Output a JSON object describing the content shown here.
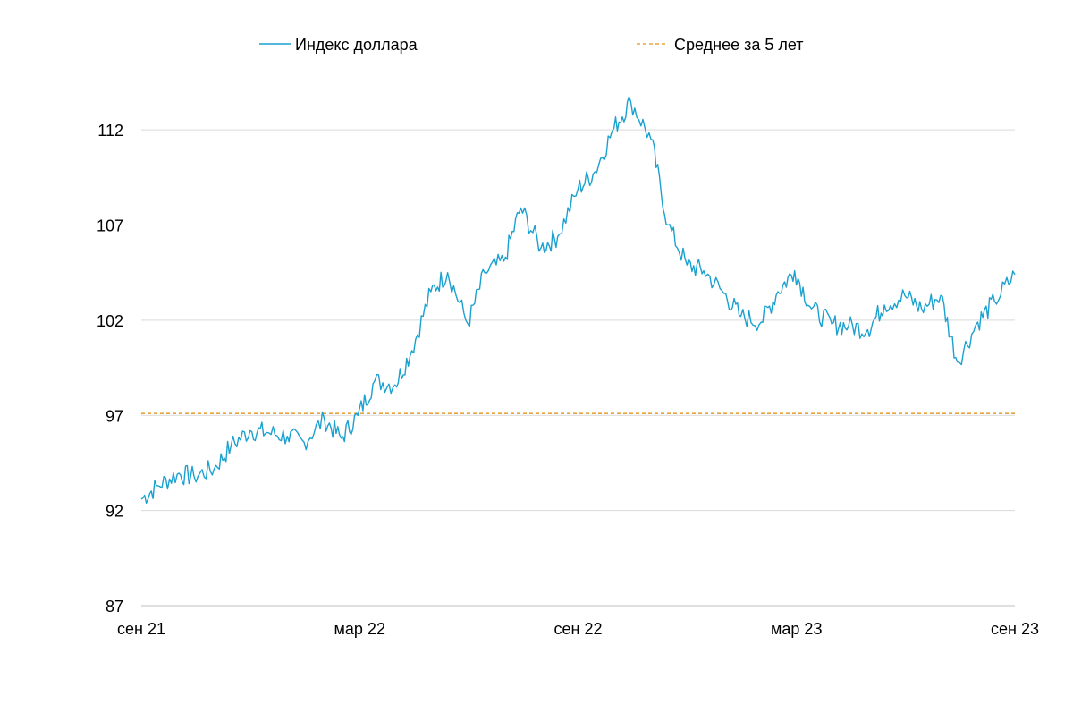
{
  "chart_data": {
    "type": "line",
    "title": "",
    "xlabel": "",
    "ylabel": "",
    "ylim": [
      87,
      114.5
    ],
    "yticks": [
      87,
      92,
      97,
      102,
      107,
      112
    ],
    "xticks": [
      "сен 21",
      "мар 22",
      "сен 22",
      "мар 23",
      "сен 23"
    ],
    "grid": "horizontal",
    "legend": "top",
    "series": [
      {
        "name": "Индекс доллара",
        "style": "solid",
        "color": "#1BA1D0",
        "x": [
          "2021-09-01",
          "2021-09-15",
          "2021-10-01",
          "2021-10-15",
          "2021-11-01",
          "2021-11-15",
          "2021-12-01",
          "2021-12-15",
          "2022-01-01",
          "2022-01-15",
          "2022-02-01",
          "2022-02-15",
          "2022-03-01",
          "2022-03-15",
          "2022-04-01",
          "2022-04-15",
          "2022-05-01",
          "2022-05-15",
          "2022-06-01",
          "2022-06-15",
          "2022-07-01",
          "2022-07-15",
          "2022-08-01",
          "2022-08-15",
          "2022-09-01",
          "2022-09-15",
          "2022-10-01",
          "2022-10-15",
          "2022-11-01",
          "2022-11-15",
          "2022-12-01",
          "2022-12-15",
          "2023-01-01",
          "2023-01-15",
          "2023-02-01",
          "2023-02-15",
          "2023-03-01",
          "2023-03-15",
          "2023-04-01",
          "2023-04-15",
          "2023-05-01",
          "2023-05-15",
          "2023-06-01",
          "2023-06-15",
          "2023-07-01",
          "2023-07-15",
          "2023-08-01",
          "2023-08-15",
          "2023-09-01"
        ],
        "values": [
          92.6,
          93.3,
          93.9,
          93.8,
          94.2,
          95.4,
          96.2,
          96.1,
          95.9,
          95.6,
          96.8,
          95.8,
          97.0,
          98.8,
          98.6,
          100.4,
          103.5,
          104.5,
          101.8,
          104.5,
          105.1,
          107.9,
          105.8,
          106.4,
          108.9,
          109.8,
          112.1,
          113.5,
          111.5,
          107.0,
          104.9,
          104.6,
          103.4,
          102.2,
          101.9,
          103.5,
          104.6,
          102.6,
          101.8,
          101.7,
          101.5,
          102.8,
          103.3,
          102.6,
          103.3,
          99.8,
          101.9,
          103.0,
          104.4
        ]
      },
      {
        "name": "Среднее за 5 лет",
        "style": "dashed",
        "color": "#E8A33C",
        "values": [
          97.1
        ]
      }
    ]
  }
}
